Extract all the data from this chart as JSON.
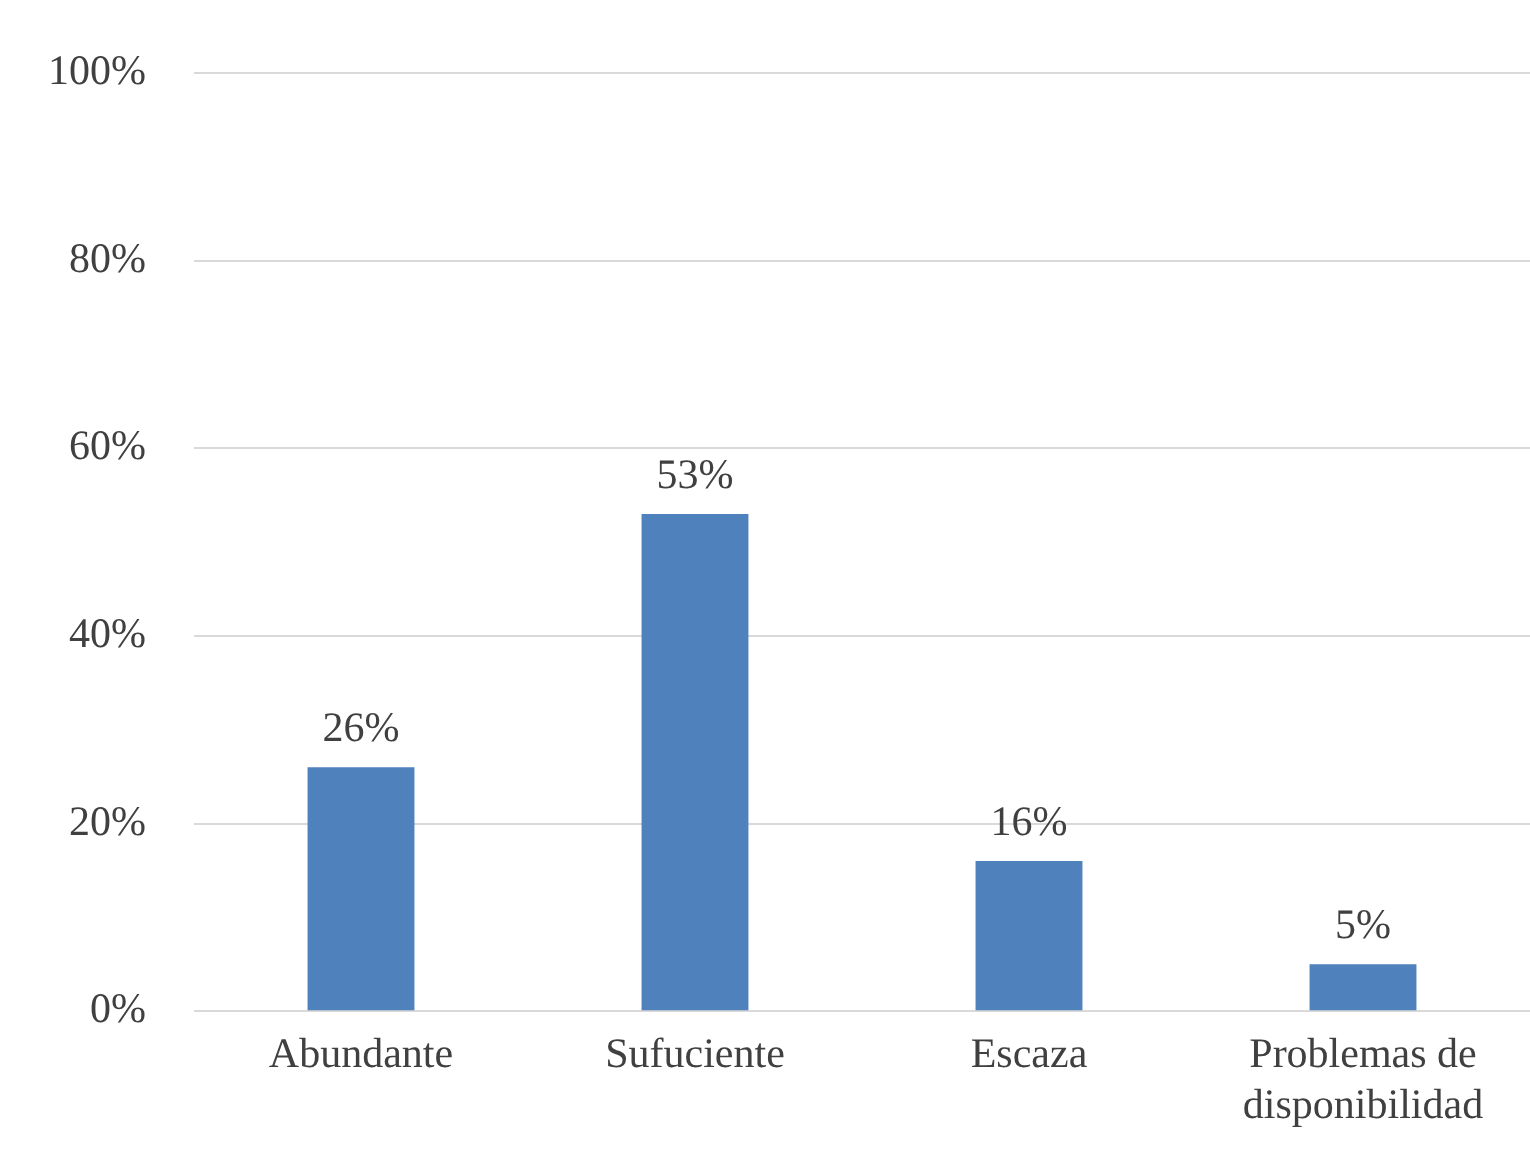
{
  "chart_data": {
    "type": "bar",
    "categories": [
      "Abundante",
      "Sufuciente",
      "Escaza",
      "Problemas de disponibilidad"
    ],
    "values": [
      26,
      53,
      16,
      5
    ],
    "color": "#4f81bd",
    "value_labels": [
      "26%",
      "53%",
      "16%",
      "5%"
    ],
    "ylim": [
      0,
      100
    ],
    "yticks": [
      {
        "value": 0,
        "label": "0%"
      },
      {
        "value": 20,
        "label": "20%"
      },
      {
        "value": 40,
        "label": "40%"
      },
      {
        "value": 60,
        "label": "60%"
      },
      {
        "value": 80,
        "label": "80%"
      },
      {
        "value": 100,
        "label": "100%"
      }
    ],
    "grid": "y",
    "legend": false
  }
}
